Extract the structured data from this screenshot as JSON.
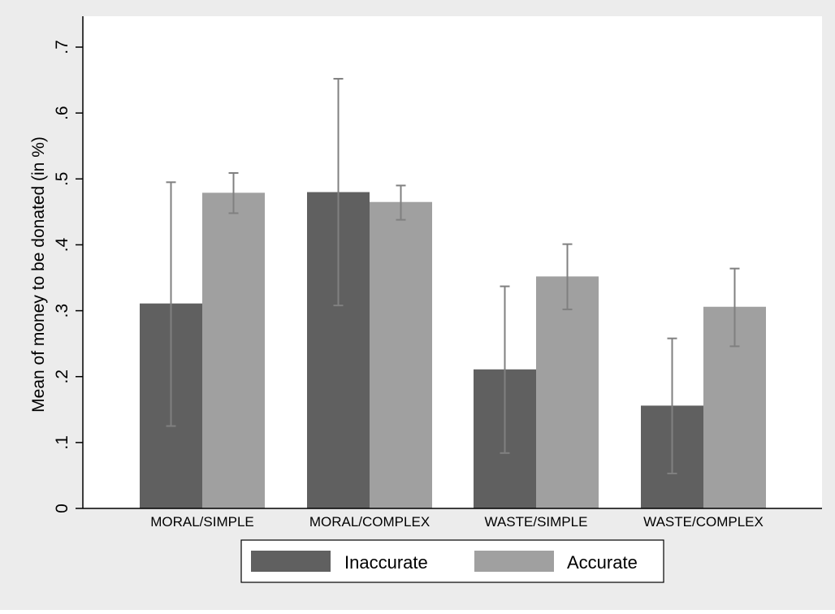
{
  "chart_data": {
    "type": "bar",
    "title": "",
    "xlabel": "",
    "ylabel": "Mean of money to be donated (in %)",
    "categories": [
      "MORAL/SIMPLE",
      "MORAL/COMPLEX",
      "WASTE/SIMPLE",
      "WASTE/COMPLEX"
    ],
    "y_ticks": [
      0,
      0.1,
      0.2,
      0.3,
      0.4,
      0.5,
      0.6,
      0.7
    ],
    "y_tick_labels": [
      "0",
      ".1",
      ".2",
      ".3",
      ".4",
      ".5",
      ".6",
      ".7"
    ],
    "ylim": [
      0,
      0.72
    ],
    "grid": false,
    "legend_position": "bottom",
    "error_bars": true,
    "series": [
      {
        "name": "Inaccurate",
        "color": "#606060",
        "values": [
          0.311,
          0.48,
          0.211,
          0.156
        ],
        "error_low": [
          0.125,
          0.308,
          0.084,
          0.053
        ],
        "error_high": [
          0.495,
          0.652,
          0.337,
          0.258
        ]
      },
      {
        "name": "Accurate",
        "color": "#a0a0a0",
        "values": [
          0.479,
          0.465,
          0.352,
          0.306
        ],
        "error_low": [
          0.448,
          0.438,
          0.302,
          0.246
        ],
        "error_high": [
          0.509,
          0.49,
          0.401,
          0.364
        ]
      }
    ],
    "colors": {
      "background": "#ececec",
      "plot_background": "#ffffff",
      "error_bar": "#808080"
    }
  }
}
